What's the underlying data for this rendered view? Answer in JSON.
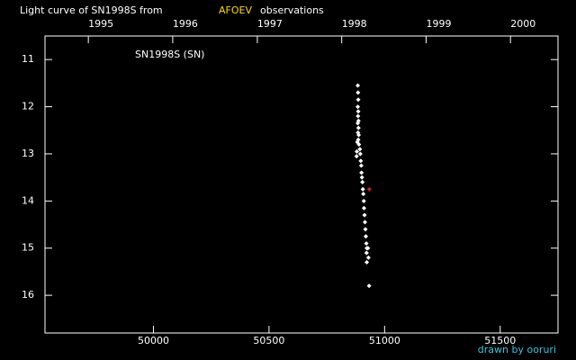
{
  "chart_data": {
    "type": "scatter",
    "title": "Light curve of SN1998S from",
    "title_source": "AFOEV",
    "title_tail": "observations",
    "annotation": "SN1998S (SN)",
    "credit": "drawn by ooruri",
    "xlim": [
      49531,
      51750
    ],
    "ylim": [
      16.8,
      10.5
    ],
    "xticks": [
      50000,
      50500,
      51000,
      51500
    ],
    "yticks": [
      11,
      12,
      13,
      14,
      15,
      16
    ],
    "x2ticks": [
      {
        "value": 49718.5,
        "label": "1995"
      },
      {
        "value": 50083.5,
        "label": "1996"
      },
      {
        "value": 50449.5,
        "label": "1997"
      },
      {
        "value": 50814.5,
        "label": "1998"
      },
      {
        "value": 51179.5,
        "label": "1999"
      },
      {
        "value": 51544.5,
        "label": "2000"
      }
    ],
    "series": [
      {
        "color": "#ffffff",
        "x": [
          50884,
          50885,
          50886,
          50884,
          50886,
          50885,
          50887,
          50884,
          50887,
          50885,
          50888,
          50882,
          50886,
          50889,
          50880,
          50879,
          50893,
          50895,
          50897,
          50899,
          50900,
          50902,
          50904,
          50906,
          50908,
          50910,
          50911,
          50913,
          50915,
          50917,
          50919,
          50921,
          50923,
          50922,
          50923,
          50928,
          50930,
          50933
        ],
        "values": [
          11.55,
          11.7,
          11.85,
          12.0,
          12.1,
          12.2,
          12.3,
          12.35,
          12.45,
          12.55,
          12.6,
          12.75,
          12.7,
          12.8,
          12.95,
          13.05,
          12.9,
          13.0,
          13.15,
          13.25,
          13.4,
          13.5,
          13.6,
          13.75,
          13.85,
          14.0,
          14.15,
          14.3,
          14.45,
          14.6,
          14.75,
          14.9,
          15.0,
          15.1,
          15.3,
          15.0,
          15.2,
          15.8
        ]
      },
      {
        "color": "#cc2222",
        "x": [
          50934
        ],
        "values": [
          13.75
        ]
      }
    ]
  }
}
